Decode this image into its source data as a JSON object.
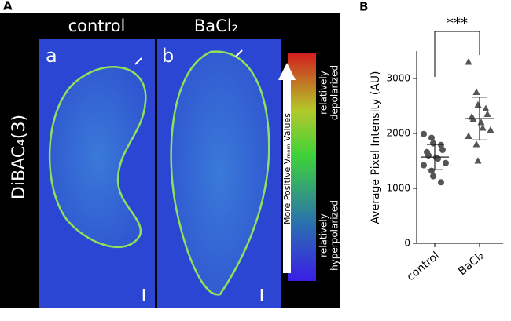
{
  "panel_a": {
    "label": "A",
    "columns": [
      "control",
      "BaCl₂"
    ],
    "image_labels": [
      "a",
      "b"
    ],
    "stain": "DiBAC₄(3)",
    "colorbar_arrow": "More Positive Vₘₑₘ Values",
    "top_note": [
      "relatively",
      "depolarized"
    ],
    "bottom_note": [
      "relatively",
      "hyperpolarized"
    ]
  },
  "chart_data": {
    "type": "scatter",
    "panel_label": "B",
    "y_label": "Average Pixel Intensity (AU)",
    "significance": "***",
    "categories": [
      "control",
      "BaCl₂"
    ],
    "series": [
      {
        "name": "control",
        "color": "#555555",
        "marker": "circle",
        "values": [
          1990,
          1920,
          1820,
          1790,
          1700,
          1660,
          1600,
          1560,
          1540,
          1460,
          1420,
          1320,
          1220,
          1110
        ],
        "mean": 1570,
        "sd": 230
      },
      {
        "name": "BaCl₂",
        "color": "#555555",
        "marker": "triangle",
        "values": [
          3300,
          2750,
          2520,
          2450,
          2350,
          2300,
          2260,
          2200,
          2100,
          2060,
          1950,
          1800,
          1500
        ],
        "mean": 2270,
        "sd": 390
      }
    ],
    "ylim": [
      0,
      3500
    ],
    "yticks": [
      0,
      1000,
      2000,
      3000
    ]
  }
}
